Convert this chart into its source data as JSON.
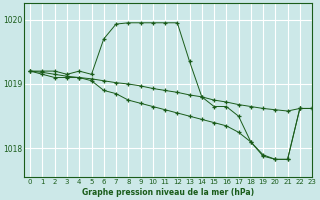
{
  "title": "Graphe pression niveau de la mer (hPa)",
  "bg_color": "#cce8e8",
  "grid_color": "#ffffff",
  "line_color": "#1a5c1a",
  "xlim": [
    -0.5,
    23
  ],
  "ylim": [
    1017.55,
    1020.25
  ],
  "yticks": [
    1018,
    1019,
    1020
  ],
  "xticks": [
    0,
    1,
    2,
    3,
    4,
    5,
    6,
    7,
    8,
    9,
    10,
    11,
    12,
    13,
    14,
    15,
    16,
    17,
    18,
    19,
    20,
    21,
    22,
    23
  ],
  "series": [
    {
      "x": [
        0,
        1,
        2,
        3,
        4,
        5,
        6,
        7,
        8,
        9,
        10,
        11,
        12,
        13,
        14,
        15,
        16,
        17,
        18,
        19,
        20,
        21,
        22,
        23
      ],
      "y": [
        1019.2,
        1019.2,
        1019.2,
        1019.15,
        1019.2,
        1019.15,
        1019.7,
        1019.93,
        1019.95,
        1019.95,
        1019.95,
        1019.95,
        1019.95,
        1019.35,
        1018.8,
        1018.65,
        1018.65,
        1018.5,
        1018.1,
        1017.88,
        1017.83,
        1017.83,
        1018.62,
        1018.62
      ]
    },
    {
      "x": [
        0,
        1,
        2,
        3,
        4,
        5,
        6,
        7,
        8,
        9,
        10,
        11,
        12,
        13,
        14,
        15,
        16,
        17,
        18,
        19,
        20,
        21,
        22,
        23
      ],
      "y": [
        1019.2,
        1019.18,
        1019.15,
        1019.12,
        1019.1,
        1019.08,
        1019.05,
        1019.02,
        1019.0,
        1018.97,
        1018.93,
        1018.9,
        1018.87,
        1018.83,
        1018.8,
        1018.75,
        1018.72,
        1018.68,
        1018.65,
        1018.62,
        1018.6,
        1018.58,
        1018.62,
        1018.62
      ]
    },
    {
      "x": [
        0,
        1,
        2,
        3,
        4,
        5,
        6,
        7,
        8,
        9,
        10,
        11,
        12,
        13,
        14,
        15,
        16,
        17,
        18,
        19,
        20,
        21,
        22,
        23
      ],
      "y": [
        1019.2,
        1019.15,
        1019.1,
        1019.1,
        1019.1,
        1019.05,
        1018.9,
        1018.85,
        1018.75,
        1018.7,
        1018.65,
        1018.6,
        1018.55,
        1018.5,
        1018.45,
        1018.4,
        1018.35,
        1018.25,
        1018.1,
        1017.9,
        1017.83,
        1017.83,
        1018.62,
        1018.62
      ]
    }
  ]
}
